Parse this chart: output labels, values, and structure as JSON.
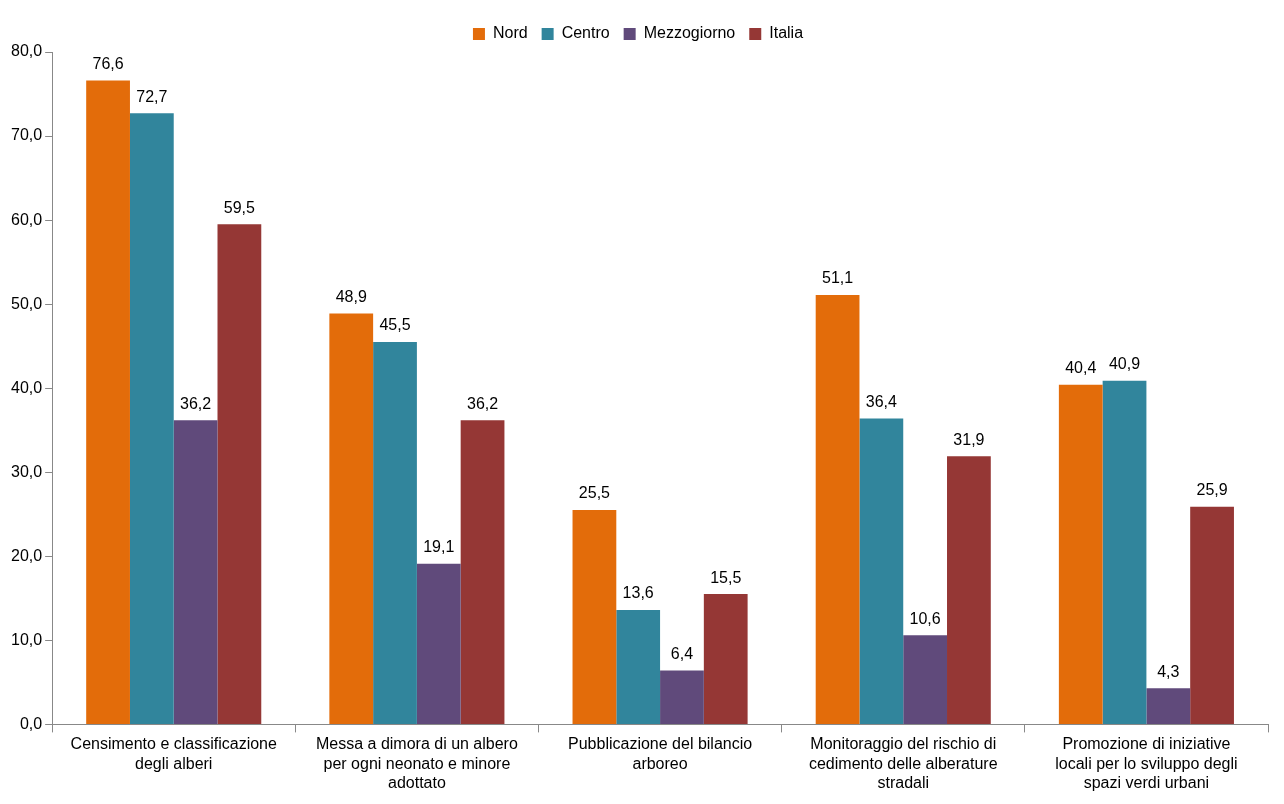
{
  "chart_data": {
    "type": "bar",
    "categories": [
      "Censimento e classificazione degli alberi",
      "Messa a dimora di un albero per ogni neonato e minore adottato",
      "Pubblicazione del bilancio arboreo",
      "Monitoraggio del rischio di cedimento delle alberature stradali",
      "Promozione di iniziative locali per lo sviluppo degli spazi verdi urbani"
    ],
    "series": [
      {
        "name": "Nord",
        "color": "#e36c0a",
        "values": [
          76.6,
          48.9,
          25.5,
          51.1,
          40.4
        ],
        "value_labels": [
          "76,6",
          "48,9",
          "25,5",
          "51,1",
          "40,4"
        ]
      },
      {
        "name": "Centro",
        "color": "#31859c",
        "values": [
          72.7,
          45.5,
          13.6,
          36.4,
          40.9
        ],
        "value_labels": [
          "72,7",
          "45,5",
          "13,6",
          "36,4",
          "40,9"
        ]
      },
      {
        "name": "Mezzogiorno",
        "color": "#604a7b",
        "values": [
          36.2,
          19.1,
          6.4,
          10.6,
          4.3
        ],
        "value_labels": [
          "36,2",
          "19,1",
          "6,4",
          "10,6",
          "4,3"
        ]
      },
      {
        "name": "Italia",
        "color": "#953735",
        "values": [
          59.5,
          36.2,
          15.5,
          31.9,
          25.9
        ],
        "value_labels": [
          "59,5",
          "36,2",
          "15,5",
          "31,9",
          "25,9"
        ]
      }
    ],
    "ylim": [
      0,
      80
    ],
    "yticks": [
      {
        "value": 0,
        "label": "0,0"
      },
      {
        "value": 10,
        "label": "10,0"
      },
      {
        "value": 20,
        "label": "20,0"
      },
      {
        "value": 30,
        "label": "30,0"
      },
      {
        "value": 40,
        "label": "40,0"
      },
      {
        "value": 50,
        "label": "50,0"
      },
      {
        "value": 60,
        "label": "60,0"
      },
      {
        "value": 70,
        "label": "70,0"
      },
      {
        "value": 80,
        "label": "80,0"
      }
    ],
    "legend": "top"
  }
}
